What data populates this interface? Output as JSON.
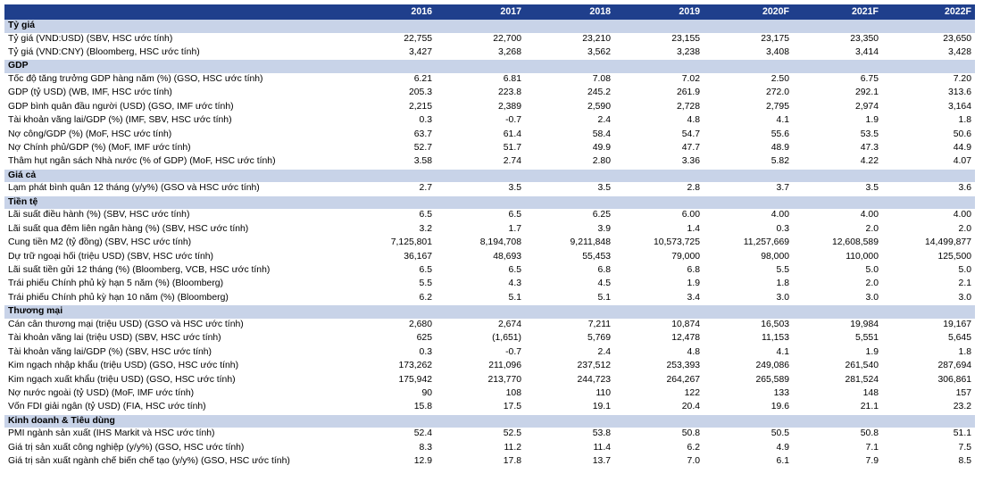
{
  "header": {
    "years": [
      "2016",
      "2017",
      "2018",
      "2019",
      "2020F",
      "2021F",
      "2022F"
    ]
  },
  "sections": [
    {
      "title": "Tỷ giá",
      "rows": [
        {
          "label": "Tỷ giá (VND:USD) (SBV, HSC ước tính)",
          "values": [
            "22,755",
            "22,700",
            "23,210",
            "23,155",
            "23,175",
            "23,350",
            "23,650"
          ]
        },
        {
          "label": "Tỷ giá (VND:CNY) (Bloomberg, HSC ước tính)",
          "values": [
            "3,427",
            "3,268",
            "3,562",
            "3,238",
            "3,408",
            "3,414",
            "3,428"
          ]
        }
      ]
    },
    {
      "title": "GDP",
      "rows": [
        {
          "label": "Tốc độ tăng trưởng GDP hàng năm (%) (GSO, HSC ước tính)",
          "values": [
            "6.21",
            "6.81",
            "7.08",
            "7.02",
            "2.50",
            "6.75",
            "7.20"
          ]
        },
        {
          "label": "GDP (tỷ USD) (WB, IMF, HSC ước tính)",
          "values": [
            "205.3",
            "223.8",
            "245.2",
            "261.9",
            "272.0",
            "292.1",
            "313.6"
          ]
        },
        {
          "label": "GDP bình quân đầu người (USD) (GSO, IMF ước tính)",
          "values": [
            "2,215",
            "2,389",
            "2,590",
            "2,728",
            "2,795",
            "2,974",
            "3,164"
          ]
        },
        {
          "label": "Tài khoản vãng lai/GDP (%) (IMF, SBV, HSC ước tính)",
          "values": [
            "0.3",
            "-0.7",
            "2.4",
            "4.8",
            "4.1",
            "1.9",
            "1.8"
          ]
        },
        {
          "label": "Nợ công/GDP (%) (MoF, HSC ước tính)",
          "values": [
            "63.7",
            "61.4",
            "58.4",
            "54.7",
            "55.6",
            "53.5",
            "50.6"
          ]
        },
        {
          "label": "Nợ Chính phủ/GDP (%) (MoF, IMF ước tính)",
          "values": [
            "52.7",
            "51.7",
            "49.9",
            "47.7",
            "48.9",
            "47.3",
            "44.9"
          ]
        },
        {
          "label": "Thâm hụt ngân sách Nhà nước (% of GDP) (MoF, HSC ước tính)",
          "values": [
            "3.58",
            "2.74",
            "2.80",
            "3.36",
            "5.82",
            "4.22",
            "4.07"
          ]
        }
      ]
    },
    {
      "title": "Giá cả",
      "rows": [
        {
          "label": "Lạm phát bình quân 12 tháng (y/y%) (GSO và HSC ước tính)",
          "values": [
            "2.7",
            "3.5",
            "3.5",
            "2.8",
            "3.7",
            "3.5",
            "3.6"
          ]
        }
      ]
    },
    {
      "title": "Tiền tệ",
      "rows": [
        {
          "label": "Lãi suất điều hành (%) (SBV, HSC ước tính)",
          "values": [
            "6.5",
            "6.5",
            "6.25",
            "6.00",
            "4.00",
            "4.00",
            "4.00"
          ]
        },
        {
          "label": "Lãi suất qua đêm liên ngân hàng (%) (SBV, HSC ước tính)",
          "values": [
            "3.2",
            "1.7",
            "3.9",
            "1.4",
            "0.3",
            "2.0",
            "2.0"
          ]
        },
        {
          "label": "Cung tiền M2 (tỷ đồng) (SBV, HSC ước tính)",
          "values": [
            "7,125,801",
            "8,194,708",
            "9,211,848",
            "10,573,725",
            "11,257,669",
            "12,608,589",
            "14,499,877"
          ]
        },
        {
          "label": "Dự trữ ngoại hối (triệu USD) (SBV, HSC ước tính)",
          "values": [
            "36,167",
            "48,693",
            "55,453",
            "79,000",
            "98,000",
            "110,000",
            "125,500"
          ]
        },
        {
          "label": "Lãi suất tiền gửi 12 tháng (%) (Bloomberg, VCB, HSC ước tính)",
          "values": [
            "6.5",
            "6.5",
            "6.8",
            "6.8",
            "5.5",
            "5.0",
            "5.0"
          ]
        },
        {
          "label": "Trái phiếu Chính phủ kỳ hạn 5 năm (%) (Bloomberg)",
          "values": [
            "5.5",
            "4.3",
            "4.5",
            "1.9",
            "1.8",
            "2.0",
            "2.1"
          ]
        },
        {
          "label": "Trái phiếu Chính phủ kỳ hạn 10 năm (%) (Bloomberg)",
          "values": [
            "6.2",
            "5.1",
            "5.1",
            "3.4",
            "3.0",
            "3.0",
            "3.0"
          ]
        }
      ]
    },
    {
      "title": "Thương mại",
      "rows": [
        {
          "label": "Cán cân thương mại (triệu USD) (GSO và HSC ước tính)",
          "values": [
            "2,680",
            "2,674",
            "7,211",
            "10,874",
            "16,503",
            "19,984",
            "19,167"
          ]
        },
        {
          "label": "Tài khoản vãng lai (triệu USD) (SBV, HSC ước tính)",
          "values": [
            "625",
            "(1,651)",
            "5,769",
            "12,478",
            "11,153",
            "5,551",
            "5,645"
          ]
        },
        {
          "label": "Tài khoản vãng lai/GDP (%) (SBV, HSC ước tính)",
          "values": [
            "0.3",
            "-0.7",
            "2.4",
            "4.8",
            "4.1",
            "1.9",
            "1.8"
          ]
        },
        {
          "label": "Kim ngạch nhập khẩu (triệu USD) (GSO, HSC ước tính)",
          "values": [
            "173,262",
            "211,096",
            "237,512",
            "253,393",
            "249,086",
            "261,540",
            "287,694"
          ]
        },
        {
          "label": "Kim ngạch xuất khẩu (triệu USD) (GSO, HSC ước tính)",
          "values": [
            "175,942",
            "213,770",
            "244,723",
            "264,267",
            "265,589",
            "281,524",
            "306,861"
          ]
        },
        {
          "label": "Nợ nước ngoài (tỷ USD) (MoF, IMF ước tính)",
          "values": [
            "90",
            "108",
            "110",
            "122",
            "133",
            "148",
            "157"
          ]
        },
        {
          "label": "Vốn FDI giải ngân (tỷ USD) (FIA, HSC ước tính)",
          "values": [
            "15.8",
            "17.5",
            "19.1",
            "20.4",
            "19.6",
            "21.1",
            "23.2"
          ]
        }
      ]
    },
    {
      "title": "Kinh doanh & Tiêu dùng",
      "rows": [
        {
          "label": "PMI ngành sản xuất (IHS Markit và HSC ước tính)",
          "values": [
            "52.4",
            "52.5",
            "53.8",
            "50.8",
            "50.5",
            "50.8",
            "51.1"
          ]
        },
        {
          "label": "Giá trị sản xuất công nghiệp (y/y%) (GSO, HSC ước tính)",
          "values": [
            "8.3",
            "11.2",
            "11.4",
            "6.2",
            "4.9",
            "7.1",
            "7.5"
          ]
        },
        {
          "label": "Giá trị sản xuất ngành chế biến chế tạo (y/y%) (GSO, HSC ước tính)",
          "values": [
            "12.9",
            "17.8",
            "13.7",
            "7.0",
            "6.1",
            "7.9",
            "8.5"
          ]
        }
      ]
    }
  ]
}
